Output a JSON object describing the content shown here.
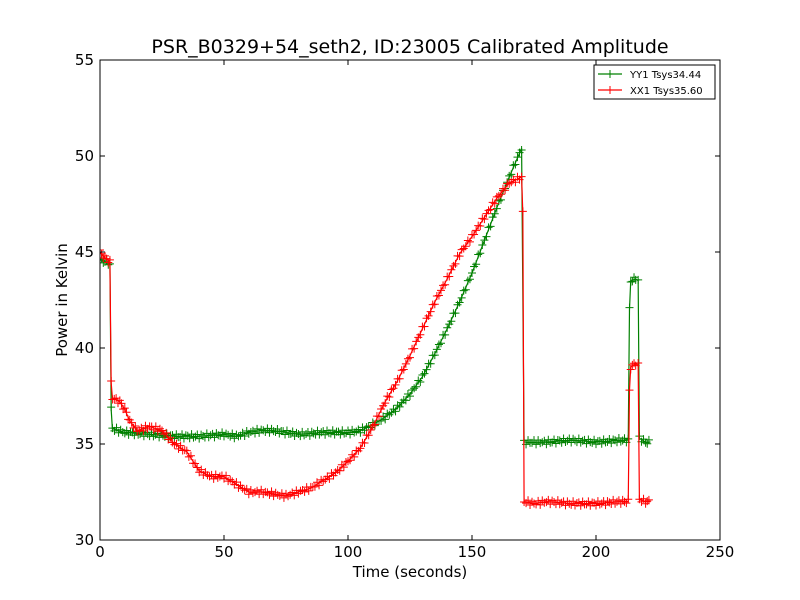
{
  "chart_data": {
    "type": "line",
    "title": "PSR_B0329+54_seth2, ID:23005 Calibrated Amplitude",
    "xlabel": "Time (seconds)",
    "ylabel": "Power in Kelvin",
    "xlim": [
      0,
      250
    ],
    "ylim": [
      30,
      55
    ],
    "xticks": [
      0,
      50,
      100,
      150,
      200,
      250
    ],
    "yticks": [
      30,
      35,
      40,
      45,
      50,
      55
    ],
    "grid": false,
    "legend_position": "top-right",
    "marker": "+",
    "series": [
      {
        "name": "YY1 Tsys34.44",
        "color": "#008000",
        "points": [
          [
            0,
            44.6
          ],
          [
            2,
            44.5
          ],
          [
            4,
            44.4
          ],
          [
            4.5,
            36.8
          ],
          [
            5,
            35.8
          ],
          [
            10,
            35.6
          ],
          [
            20,
            35.5
          ],
          [
            30,
            35.4
          ],
          [
            40,
            35.4
          ],
          [
            50,
            35.5
          ],
          [
            55,
            35.4
          ],
          [
            60,
            35.6
          ],
          [
            65,
            35.7
          ],
          [
            70,
            35.7
          ],
          [
            80,
            35.5
          ],
          [
            90,
            35.6
          ],
          [
            100,
            35.6
          ],
          [
            105,
            35.7
          ],
          [
            110,
            36.0
          ],
          [
            115,
            36.4
          ],
          [
            120,
            36.9
          ],
          [
            125,
            37.6
          ],
          [
            130,
            38.5
          ],
          [
            135,
            39.7
          ],
          [
            140,
            41.0
          ],
          [
            145,
            42.4
          ],
          [
            150,
            43.9
          ],
          [
            155,
            45.6
          ],
          [
            160,
            47.3
          ],
          [
            165,
            48.9
          ],
          [
            170,
            50.4
          ],
          [
            171,
            35.1
          ],
          [
            175,
            35.1
          ],
          [
            180,
            35.1
          ],
          [
            190,
            35.2
          ],
          [
            200,
            35.1
          ],
          [
            210,
            35.2
          ],
          [
            213,
            35.2
          ],
          [
            213.5,
            42.0
          ],
          [
            214,
            43.5
          ],
          [
            216,
            43.6
          ],
          [
            217,
            43.5
          ],
          [
            217.5,
            35.3
          ],
          [
            220,
            35.1
          ],
          [
            222,
            35.1
          ]
        ]
      },
      {
        "name": "XX1 Tsys35.60",
        "color": "#ff0000",
        "points": [
          [
            0,
            45.0
          ],
          [
            2,
            44.7
          ],
          [
            4,
            44.5
          ],
          [
            4.5,
            38.2
          ],
          [
            5,
            37.4
          ],
          [
            8,
            37.2
          ],
          [
            10,
            36.8
          ],
          [
            12,
            36.2
          ],
          [
            15,
            35.7
          ],
          [
            20,
            35.9
          ],
          [
            25,
            35.7
          ],
          [
            30,
            35.0
          ],
          [
            35,
            34.6
          ],
          [
            40,
            33.6
          ],
          [
            45,
            33.3
          ],
          [
            50,
            33.3
          ],
          [
            55,
            32.9
          ],
          [
            60,
            32.5
          ],
          [
            65,
            32.5
          ],
          [
            70,
            32.4
          ],
          [
            75,
            32.3
          ],
          [
            80,
            32.5
          ],
          [
            85,
            32.7
          ],
          [
            90,
            33.1
          ],
          [
            95,
            33.5
          ],
          [
            100,
            34.1
          ],
          [
            105,
            34.8
          ],
          [
            110,
            35.9
          ],
          [
            115,
            37.2
          ],
          [
            120,
            38.3
          ],
          [
            125,
            39.6
          ],
          [
            130,
            41.0
          ],
          [
            135,
            42.4
          ],
          [
            140,
            43.6
          ],
          [
            145,
            44.9
          ],
          [
            150,
            45.8
          ],
          [
            155,
            46.8
          ],
          [
            160,
            47.8
          ],
          [
            165,
            48.6
          ],
          [
            170,
            48.9
          ],
          [
            170.5,
            47.0
          ],
          [
            171,
            32.0
          ],
          [
            175,
            31.9
          ],
          [
            180,
            32.0
          ],
          [
            190,
            31.9
          ],
          [
            200,
            31.9
          ],
          [
            210,
            32.0
          ],
          [
            213,
            32.0
          ],
          [
            213.5,
            37.8
          ],
          [
            214,
            39.0
          ],
          [
            216,
            39.2
          ],
          [
            217,
            39.1
          ],
          [
            217.5,
            32.1
          ],
          [
            220,
            32.0
          ],
          [
            222,
            32.0
          ]
        ]
      }
    ]
  }
}
